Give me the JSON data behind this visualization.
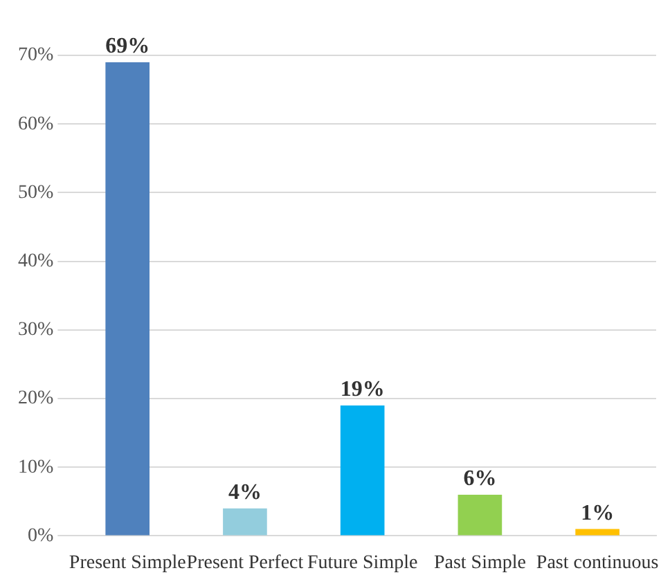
{
  "chart_data": {
    "type": "bar",
    "categories": [
      "Present Simple",
      "Present Perfect",
      "Future Simple",
      "Past Simple",
      "Past continuous"
    ],
    "values": [
      69,
      4,
      19,
      6,
      1
    ],
    "colors": [
      "#4f81bd",
      "#93cddd",
      "#00b0f0",
      "#92d050",
      "#ffc000"
    ],
    "ylim": [
      0,
      70
    ],
    "yticks": [
      {
        "value": 0,
        "label": "0%"
      },
      {
        "value": 10,
        "label": "10%"
      },
      {
        "value": 20,
        "label": "20%"
      },
      {
        "value": 30,
        "label": "30%"
      },
      {
        "value": 40,
        "label": "40%"
      },
      {
        "value": 50,
        "label": "50%"
      },
      {
        "value": 60,
        "label": "60%"
      },
      {
        "value": 70,
        "label": "70%"
      }
    ],
    "value_labels": [
      "69%",
      "4%",
      "19%",
      "6%",
      "1%"
    ],
    "grid": "y",
    "legend": false
  }
}
